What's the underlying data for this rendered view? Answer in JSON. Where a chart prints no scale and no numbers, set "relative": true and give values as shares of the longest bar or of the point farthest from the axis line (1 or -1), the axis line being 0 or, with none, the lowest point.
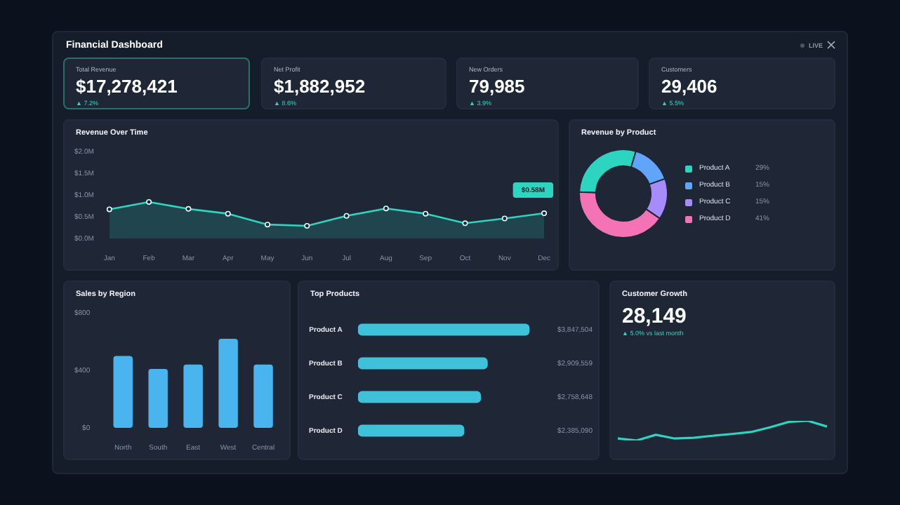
{
  "chart_data": [
    {
      "type": "other",
      "title": "Financial Dashboard",
      "annotations": [
        "LIVE"
      ]
    },
    {
      "type": "other",
      "title": "Total Revenue",
      "annotations": [
        "$17,278,421",
        "▲ 7.2%"
      ]
    },
    {
      "type": "other",
      "title": "Net Profit",
      "annotations": [
        "$1,882,952",
        "▲ 8.6%"
      ]
    },
    {
      "type": "other",
      "title": "New Orders",
      "annotations": [
        "79,985",
        "▲ 3.9%"
      ]
    },
    {
      "type": "other",
      "title": "Customers",
      "annotations": [
        "29,406",
        "▲ 5.5%"
      ]
    },
    {
      "type": "area",
      "title": "Revenue Over Time",
      "categories": [
        "Jan",
        "Feb",
        "Mar",
        "Apr",
        "May",
        "Jun",
        "Jul",
        "Aug",
        "Sep",
        "Oct",
        "Nov",
        "Dec"
      ],
      "series": [
        {
          "color": "#2dd4bf",
          "values": [
            0.67,
            0.84,
            0.68,
            0.57,
            0.32,
            0.29,
            0.52,
            0.69,
            0.57,
            0.35,
            0.46,
            0.58
          ]
        }
      ],
      "ylim": [
        0,
        2
      ],
      "yticks": [
        {
          "value": 0,
          "label": "$0.0M"
        },
        {
          "value": 0.5,
          "label": "$0.5M"
        },
        {
          "value": 1,
          "label": "$1.0M"
        },
        {
          "value": 1.5,
          "label": "$1.5M"
        },
        {
          "value": 2,
          "label": "$2.0M"
        }
      ],
      "marker": "circle",
      "annotations": [
        {
          "text": "$0.58M",
          "x": "Dec",
          "y": 0.58
        }
      ]
    },
    {
      "type": "donut",
      "title": "Revenue by Product",
      "categories": [
        "Product A",
        "Product B",
        "Product C",
        "Product D"
      ],
      "values": [
        29,
        15,
        15,
        41
      ],
      "colors": [
        "#2dd4bf",
        "#60a5fa",
        "#a78bfa",
        "#f472b6"
      ],
      "value_labels": [
        "29%",
        "15%",
        "15%",
        "41%"
      ],
      "legend": "right"
    },
    {
      "type": "bar",
      "title": "Sales by Region",
      "categories": [
        "North",
        "South",
        "East",
        "West",
        "Central"
      ],
      "values": [
        500,
        410,
        440,
        620,
        440
      ],
      "color": "#4ab4ee",
      "ylim": [
        0,
        800
      ],
      "yticks": [
        {
          "value": 0,
          "label": "$0"
        },
        {
          "value": 400,
          "label": "$400"
        },
        {
          "value": 800,
          "label": "$800"
        }
      ]
    },
    {
      "type": "bar",
      "orientation": "horizontal",
      "title": "Top Products",
      "categories": [
        "Product A",
        "Product B",
        "Product C",
        "Product D"
      ],
      "values": [
        3847504,
        2909559,
        2758648,
        2385090
      ],
      "color": "#3fc1d9",
      "value_labels": [
        "$3,847,504",
        "$2,909,559",
        "$2,758,648",
        "$2,385,090"
      ]
    },
    {
      "type": "other",
      "title": "Customer Growth",
      "annotations": [
        "28,149",
        "▲ 5.0% vs last month"
      ]
    },
    {
      "type": "line",
      "relative": true,
      "categories": [
        null,
        null,
        null,
        null,
        null,
        null,
        null,
        null,
        null,
        null,
        null,
        null
      ],
      "values": [
        0.1,
        0,
        0.29,
        0.1,
        0.14,
        0.24,
        0.33,
        0.43,
        0.67,
        0.95,
        1,
        0.71
      ],
      "color": "#2dd4bf"
    }
  ]
}
